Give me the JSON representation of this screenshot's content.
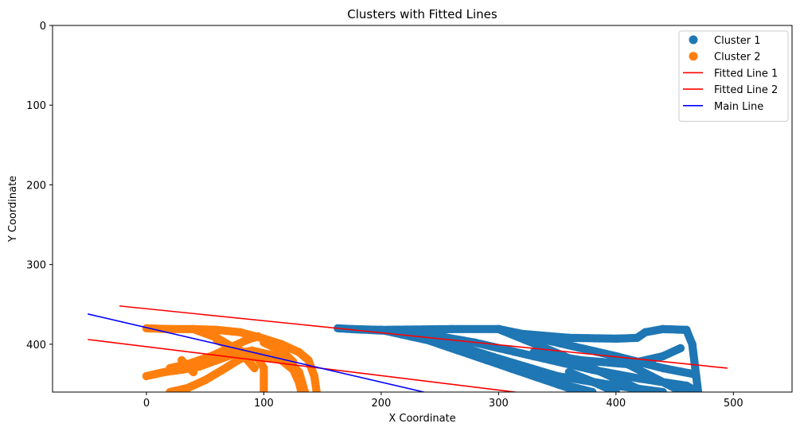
{
  "chart_data": {
    "type": "scatter",
    "title": "Clusters with Fitted Lines",
    "xlabel": "X Coordinate",
    "ylabel": "Y Coordinate",
    "xlim": [
      -80,
      550
    ],
    "ylim": [
      460,
      0
    ],
    "y_inverted": true,
    "grid": false,
    "legend_position": "top-right",
    "x_ticks": [
      0,
      100,
      200,
      300,
      400,
      500
    ],
    "y_ticks": [
      0,
      100,
      200,
      300,
      400
    ],
    "series": [
      {
        "name": "Cluster 1",
        "kind": "scatter",
        "color": "#1f77b4",
        "segments": [
          [
            [
              163,
              380
            ],
            [
              175,
              381
            ],
            [
              200,
              382
            ],
            [
              260,
              381
            ],
            [
              300,
              381
            ],
            [
              320,
              387
            ],
            [
              360,
              392
            ],
            [
              400,
              393
            ],
            [
              418,
              392
            ],
            [
              425,
              385
            ],
            [
              440,
              381
            ],
            [
              460,
              382
            ],
            [
              465,
              400
            ],
            [
              470,
              460
            ]
          ],
          [
            [
              175,
              381
            ],
            [
              230,
              385
            ],
            [
              280,
              398
            ],
            [
              330,
              415
            ],
            [
              380,
              432
            ],
            [
              420,
              443
            ],
            [
              460,
              452
            ],
            [
              470,
              460
            ]
          ],
          [
            [
              200,
              382
            ],
            [
              250,
              395
            ],
            [
              300,
              418
            ],
            [
              350,
              440
            ],
            [
              400,
              452
            ],
            [
              440,
              460
            ]
          ],
          [
            [
              200,
              382
            ],
            [
              240,
              395
            ],
            [
              290,
              420
            ],
            [
              340,
              445
            ],
            [
              380,
              460
            ]
          ],
          [
            [
              210,
              382
            ],
            [
              260,
              400
            ],
            [
              310,
              430
            ],
            [
              350,
              450
            ],
            [
              370,
              460
            ]
          ],
          [
            [
              300,
              381
            ],
            [
              350,
              398
            ],
            [
              400,
              415
            ],
            [
              440,
              430
            ],
            [
              468,
              438
            ]
          ],
          [
            [
              300,
              381
            ],
            [
              340,
              405
            ],
            [
              380,
              430
            ],
            [
              410,
              450
            ],
            [
              425,
              460
            ]
          ],
          [
            [
              330,
              410
            ],
            [
              370,
              420
            ],
            [
              410,
              425
            ],
            [
              440,
              415
            ],
            [
              455,
              405
            ]
          ],
          [
            [
              410,
              425
            ],
            [
              430,
              440
            ],
            [
              450,
              455
            ],
            [
              460,
              460
            ]
          ],
          [
            [
              360,
              435
            ],
            [
              380,
              447
            ],
            [
              400,
              460
            ]
          ]
        ]
      },
      {
        "name": "Cluster 2",
        "kind": "scatter",
        "color": "#ff7f0e",
        "segments": [
          [
            [
              0,
              380
            ],
            [
              20,
              381
            ],
            [
              40,
              381
            ],
            [
              60,
              382
            ],
            [
              80,
              385
            ],
            [
              100,
              393
            ],
            [
              115,
              400
            ],
            [
              130,
              410
            ],
            [
              138,
              420
            ],
            [
              143,
              440
            ],
            [
              145,
              460
            ]
          ],
          [
            [
              0,
              440
            ],
            [
              15,
              435
            ],
            [
              30,
              432
            ],
            [
              45,
              428
            ],
            [
              60,
              420
            ],
            [
              75,
              412
            ],
            [
              90,
              408
            ],
            [
              105,
              413
            ],
            [
              120,
              420
            ],
            [
              130,
              435
            ],
            [
              135,
              460
            ]
          ],
          [
            [
              20,
              430
            ],
            [
              35,
              425
            ],
            [
              55,
              415
            ],
            [
              70,
              405
            ],
            [
              85,
              395
            ],
            [
              95,
              390
            ]
          ],
          [
            [
              30,
              420
            ],
            [
              35,
              428
            ],
            [
              40,
              435
            ]
          ],
          [
            [
              20,
              460
            ],
            [
              35,
              455
            ],
            [
              50,
              445
            ],
            [
              65,
              432
            ],
            [
              78,
              420
            ],
            [
              90,
              412
            ]
          ],
          [
            [
              60,
              395
            ],
            [
              80,
              408
            ],
            [
              95,
              418
            ],
            [
              100,
              430
            ],
            [
              100,
              460
            ]
          ],
          [
            [
              40,
              381
            ],
            [
              60,
              392
            ],
            [
              75,
              405
            ],
            [
              85,
              418
            ],
            [
              92,
              430
            ]
          ],
          [
            [
              100,
              415
            ],
            [
              115,
              420
            ],
            [
              125,
              432
            ],
            [
              130,
              448
            ],
            [
              132,
              460
            ]
          ],
          [
            [
              100,
              398
            ],
            [
              110,
              405
            ],
            [
              118,
              412
            ],
            [
              125,
              422
            ]
          ]
        ]
      },
      {
        "name": "Fitted Line 1",
        "kind": "line",
        "color": "#ff0000",
        "x": [
          -23,
          495
        ],
        "y": [
          352,
          430
        ]
      },
      {
        "name": "Fitted Line 2",
        "kind": "line",
        "color": "#ff0000",
        "x": [
          -50,
          330
        ],
        "y": [
          394,
          463
        ]
      },
      {
        "name": "Main Line",
        "kind": "line",
        "color": "#0000ff",
        "x": [
          -50,
          245
        ],
        "y": [
          362,
          463
        ]
      }
    ]
  }
}
